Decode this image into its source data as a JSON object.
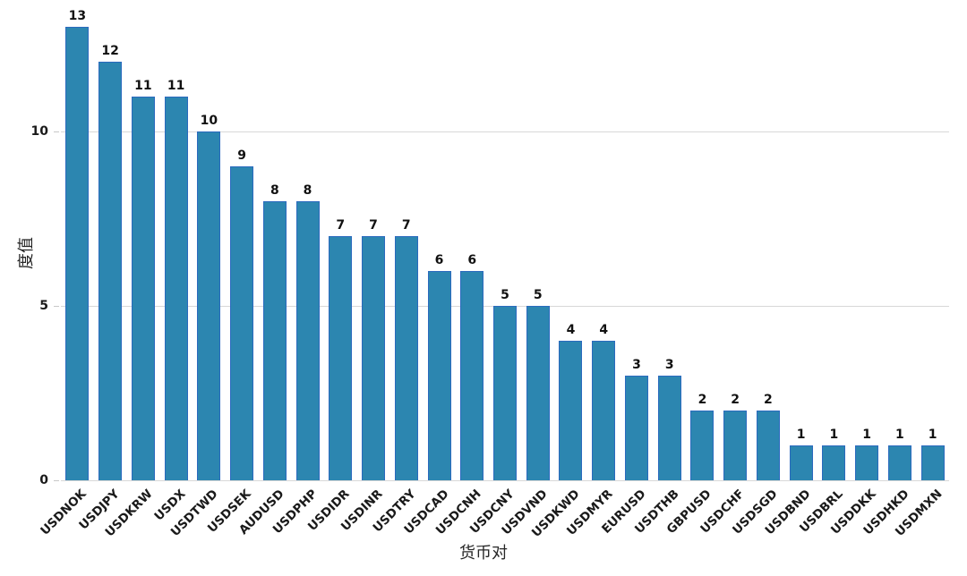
{
  "chart_data": {
    "type": "bar",
    "title": "",
    "xlabel": "货币对",
    "ylabel": "度值",
    "categories": [
      "USDNOK",
      "USDJPY",
      "USDKRW",
      "USDX",
      "USDTWD",
      "USDSEK",
      "AUDUSD",
      "USDPHP",
      "USDIDR",
      "USDINR",
      "USDTRY",
      "USDCAD",
      "USDCNH",
      "USDCNY",
      "USDVND",
      "USDKWD",
      "USDMYR",
      "EURUSD",
      "USDTHB",
      "GBPUSD",
      "USDCHF",
      "USDSGD",
      "USDBND",
      "USDBRL",
      "USDDKK",
      "USDHKD",
      "USDMXN"
    ],
    "values": [
      13,
      12,
      11,
      11,
      10,
      9,
      8,
      8,
      7,
      7,
      7,
      6,
      6,
      5,
      5,
      4,
      4,
      3,
      3,
      2,
      2,
      2,
      1,
      1,
      1,
      1,
      1
    ],
    "yticks": [
      0,
      5,
      10
    ],
    "ylim": [
      0,
      13.5
    ],
    "grid": true,
    "legend": false,
    "bar_color": "#2c86b0",
    "bar_edge_color": "#2b6abe",
    "grid_color": "#d8d8d8",
    "text_color": "#1a1a1a"
  }
}
